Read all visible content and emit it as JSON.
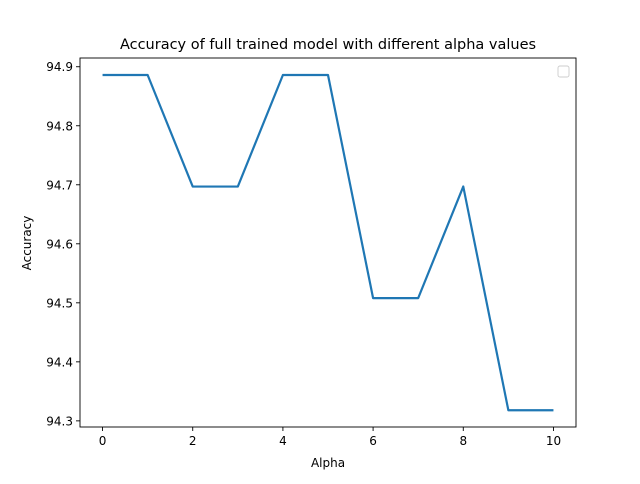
{
  "chart_data": {
    "type": "line",
    "title": "Accuracy of full trained model with different alpha values",
    "xlabel": "Alpha",
    "ylabel": "Accuracy",
    "x": [
      0,
      1,
      2,
      3,
      4,
      5,
      6,
      7,
      8,
      9,
      10
    ],
    "series": [
      {
        "values": [
          94.886,
          94.886,
          94.697,
          94.697,
          94.886,
          94.886,
          94.508,
          94.508,
          94.697,
          94.318,
          94.318
        ],
        "color": "#1f77b4"
      }
    ],
    "xlim": [
      -0.5,
      10.5
    ],
    "ylim": [
      94.2896,
      94.9148
    ],
    "xticks": [
      0,
      2,
      4,
      6,
      8,
      10
    ],
    "yticks": [
      94.3,
      94.4,
      94.5,
      94.6,
      94.7,
      94.8,
      94.9
    ],
    "xtick_labels": [
      "0",
      "2",
      "4",
      "6",
      "8",
      "10"
    ],
    "ytick_labels": [
      "94.3",
      "94.4",
      "94.5",
      "94.6",
      "94.7",
      "94.8",
      "94.9"
    ],
    "grid": false,
    "legend": "top-right",
    "legend_entries": []
  }
}
